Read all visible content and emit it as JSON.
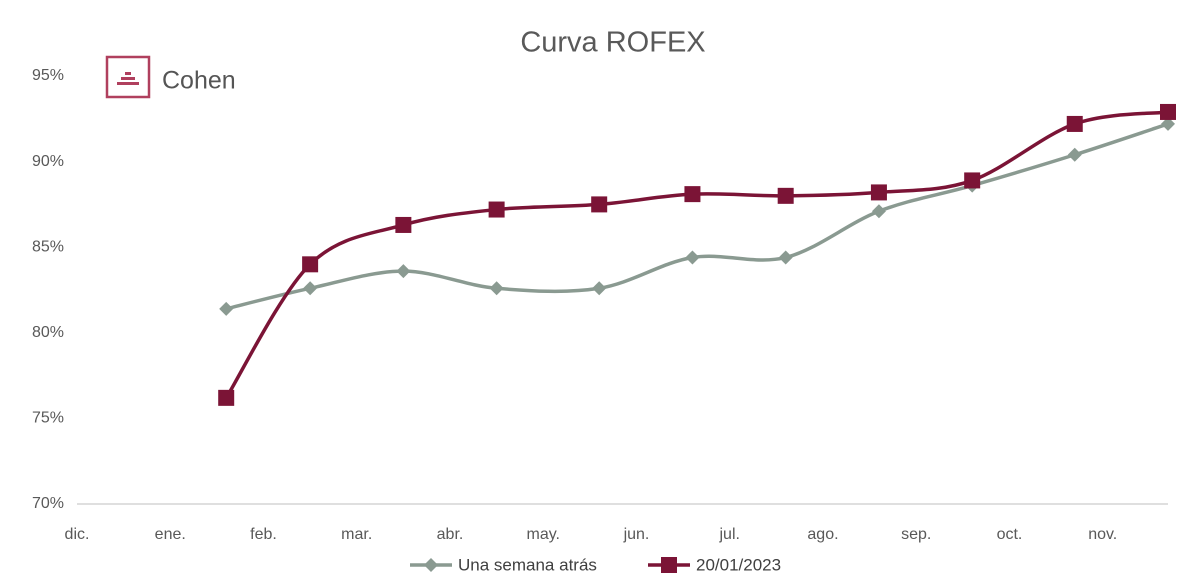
{
  "chart_data": {
    "type": "line",
    "title": "Curva ROFEX",
    "logo": "Cohen",
    "xlim": [
      0,
      11.7
    ],
    "xticks": [
      {
        "value": 0,
        "label": "dic."
      },
      {
        "value": 1,
        "label": "ene."
      },
      {
        "value": 2,
        "label": "feb."
      },
      {
        "value": 3,
        "label": "mar."
      },
      {
        "value": 4,
        "label": "abr."
      },
      {
        "value": 5,
        "label": "may."
      },
      {
        "value": 6,
        "label": "jun."
      },
      {
        "value": 7,
        "label": "jul."
      },
      {
        "value": 8,
        "label": "ago."
      },
      {
        "value": 9,
        "label": "sep."
      },
      {
        "value": 10,
        "label": "oct."
      },
      {
        "value": 11,
        "label": "nov."
      }
    ],
    "ylim": [
      70,
      95
    ],
    "yticks": [
      {
        "value": 70,
        "label": "70%"
      },
      {
        "value": 75,
        "label": "75%"
      },
      {
        "value": 80,
        "label": "80%"
      },
      {
        "value": 85,
        "label": "85%"
      },
      {
        "value": 90,
        "label": "90%"
      },
      {
        "value": 95,
        "label": "95%"
      }
    ],
    "x": [
      1.6,
      2.5,
      3.5,
      4.5,
      5.6,
      6.6,
      7.6,
      8.6,
      9.6,
      10.7,
      11.7
    ],
    "series": [
      {
        "name": "Una semana atrás",
        "color": "#8a9a91",
        "marker": "diamond",
        "values": [
          81.4,
          82.6,
          83.6,
          82.6,
          82.6,
          84.4,
          84.4,
          87.1,
          88.6,
          90.4,
          92.2
        ]
      },
      {
        "name": "20/01/2023",
        "color": "#7b1436",
        "marker": "square",
        "values": [
          76.2,
          84.0,
          86.3,
          87.2,
          87.5,
          88.1,
          88.0,
          88.2,
          88.9,
          92.2,
          92.9
        ]
      }
    ],
    "smooth": true,
    "grid": false,
    "legend": "bottom"
  }
}
